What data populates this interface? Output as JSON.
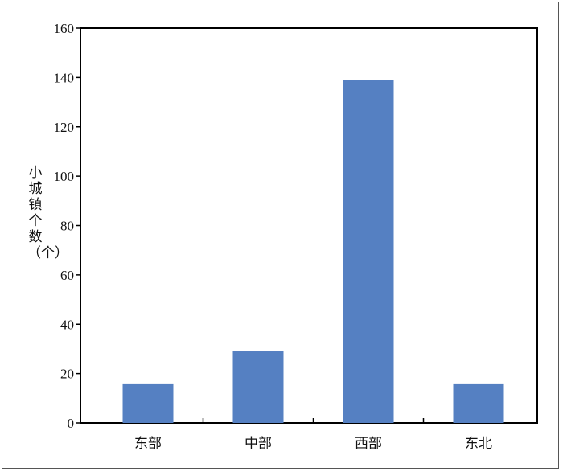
{
  "chart_data": {
    "type": "bar",
    "categories": [
      "东部",
      "中部",
      "西部",
      "东北"
    ],
    "values": [
      16,
      29,
      139,
      16
    ],
    "title": "",
    "xlabel": "",
    "ylabel": "小城镇个数（个）",
    "ylim": [
      0,
      160
    ],
    "yticks": [
      0,
      20,
      40,
      60,
      80,
      100,
      120,
      140,
      160
    ],
    "grid": false,
    "legend": "none",
    "bar_color": "#5580C2"
  }
}
